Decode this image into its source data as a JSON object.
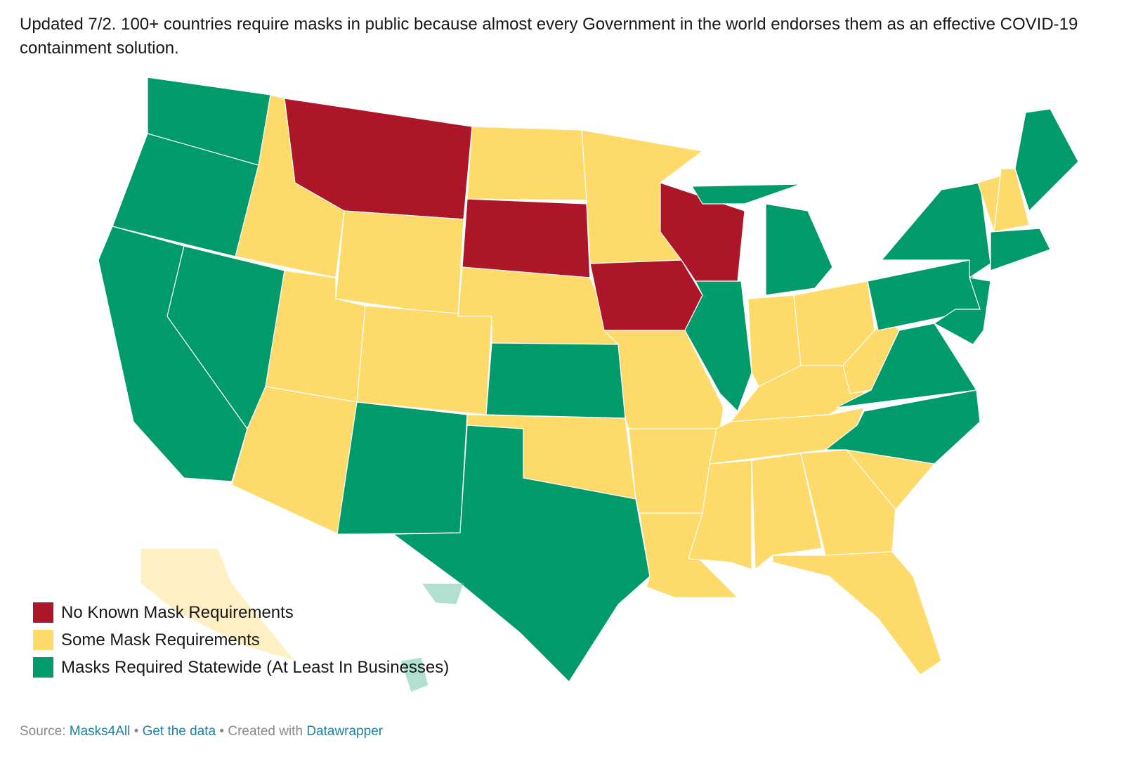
{
  "title": "Updated 7/2. 100+ countries require masks in public because almost every Government in the world endorses them as an effective COVID-19 containment solution.",
  "legend": [
    {
      "label": "No Known Mask Requirements",
      "color": "#ad1529"
    },
    {
      "label": "Some Mask Requirements",
      "color": "#fdda6a"
    },
    {
      "label": "Masks Required Statewide (At Least In Businesses)",
      "color": "#019b6b"
    }
  ],
  "footer": {
    "source_label": "Source:",
    "source": "Masks4All",
    "separator": "•",
    "get_data": "Get the data",
    "created_label": "Created with",
    "tool": "Datawrapper"
  }
}
